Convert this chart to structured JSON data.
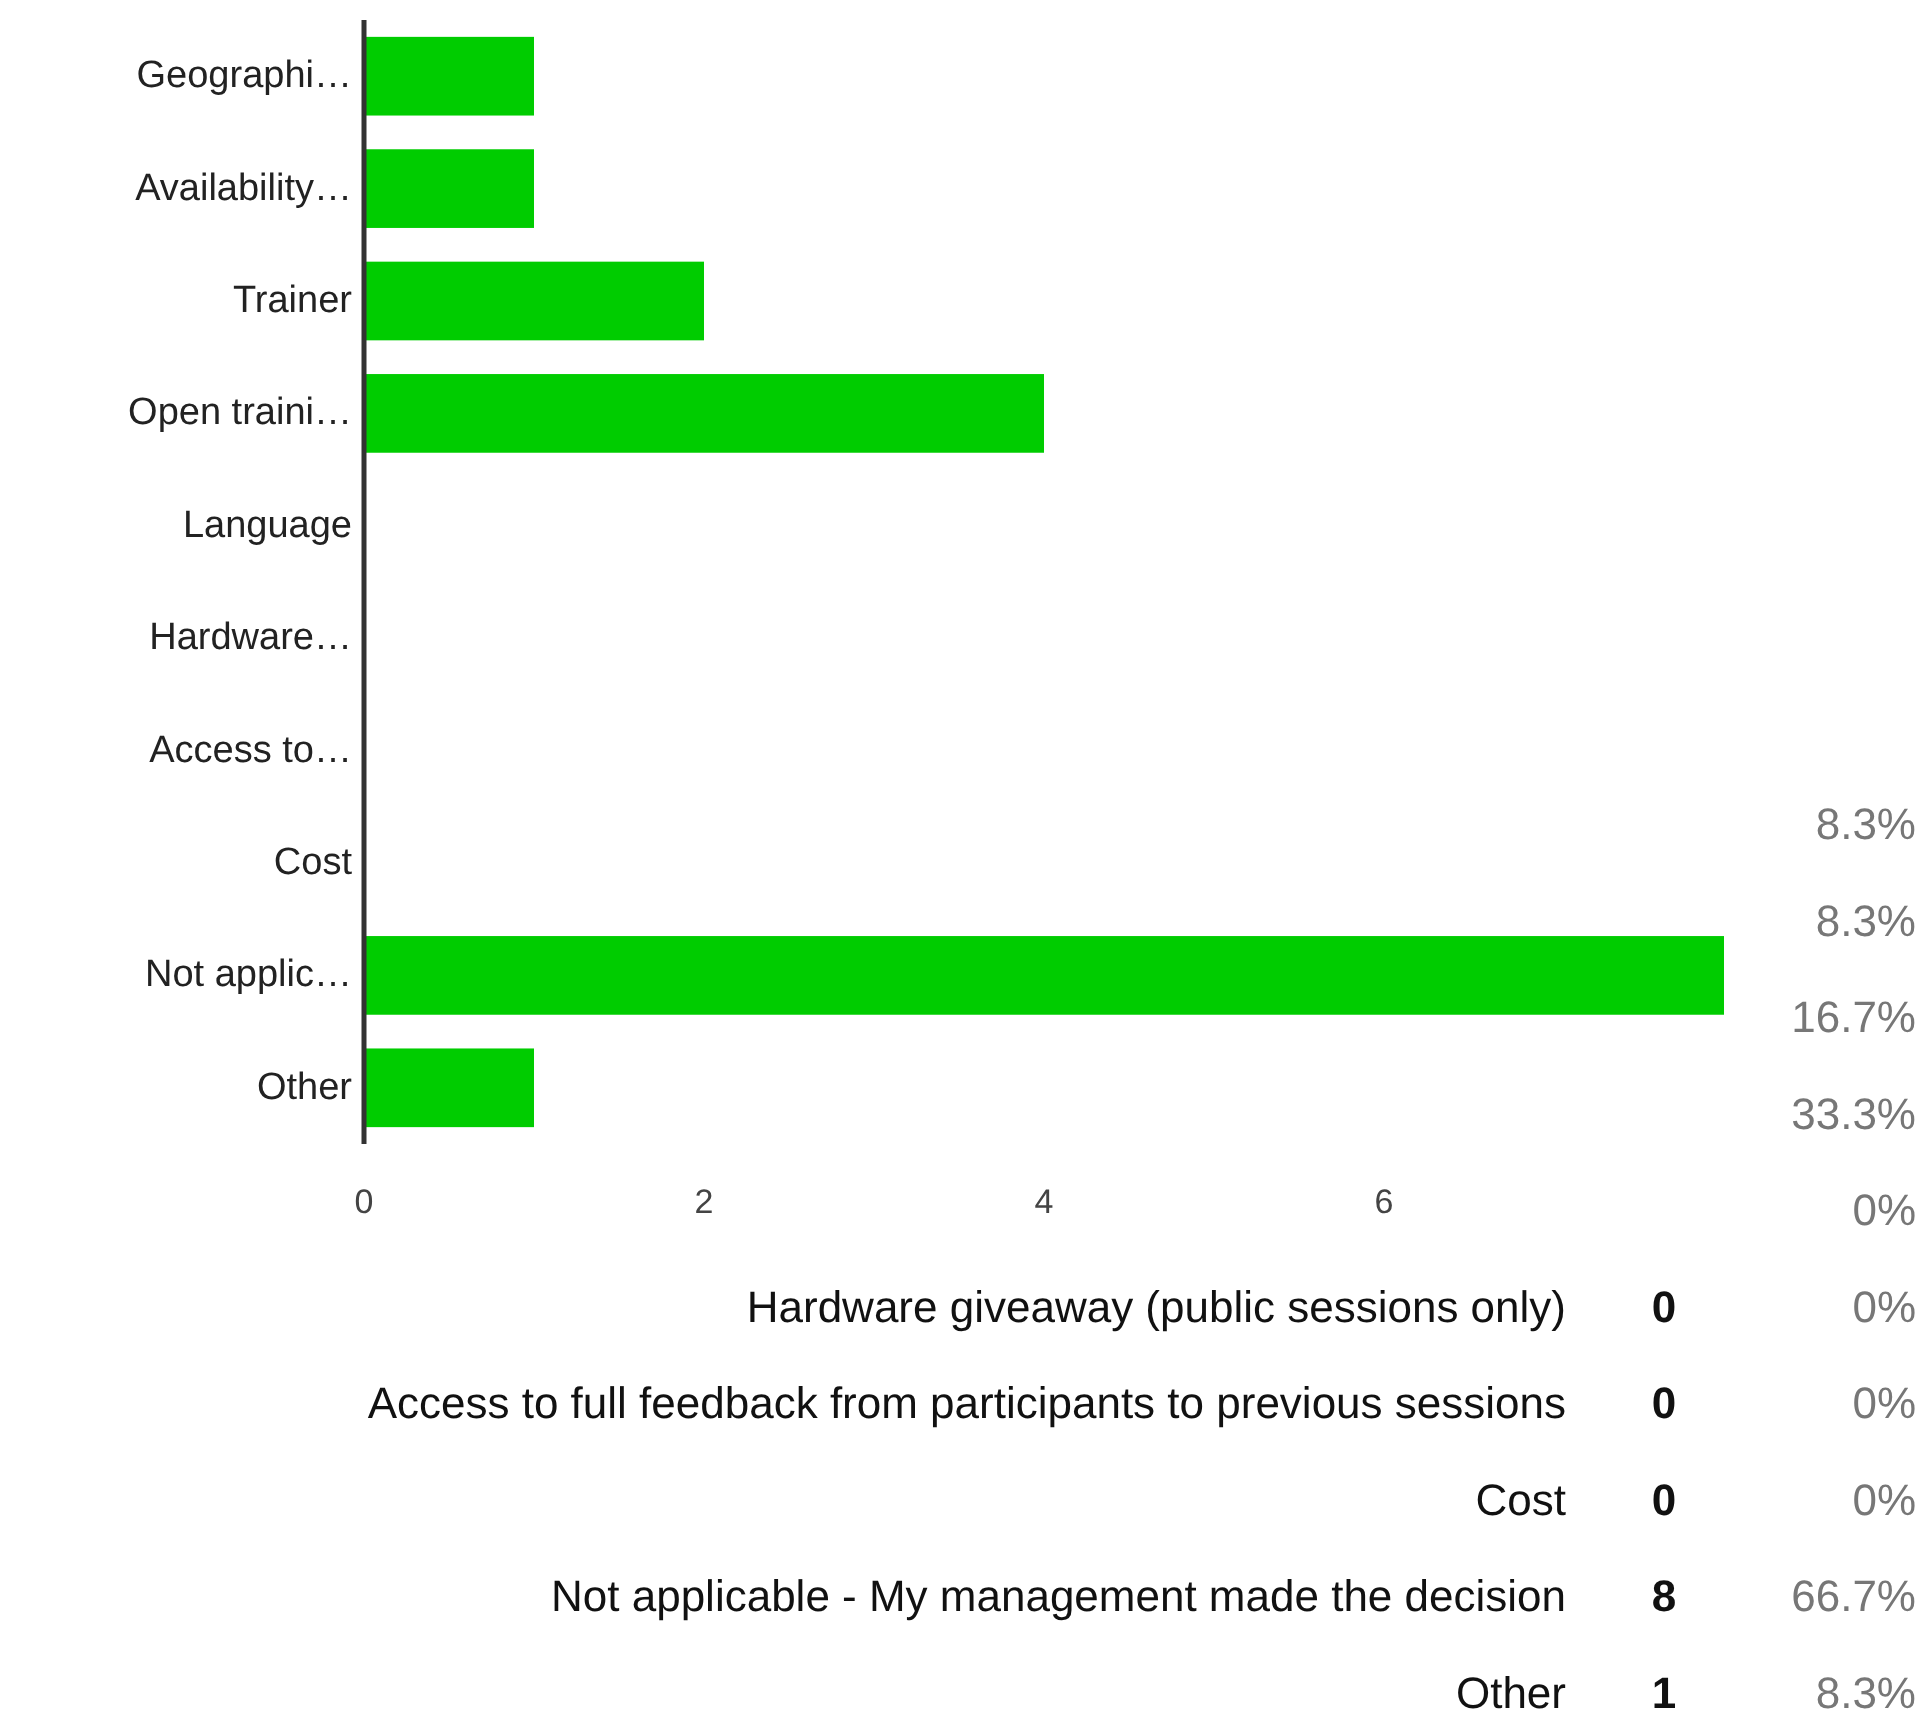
{
  "chart_data": {
    "type": "bar",
    "orientation": "horizontal",
    "categories": [
      "Geographi…",
      "Availability…",
      "Trainer",
      "Open traini…",
      "Language",
      "Hardware…",
      "Access to…",
      "Cost",
      "Not applic…",
      "Other"
    ],
    "values": [
      1,
      1,
      2,
      4,
      0,
      0,
      0,
      0,
      8,
      1
    ],
    "color": "#00cc00",
    "xlim": [
      0,
      8
    ],
    "xticks": [
      0,
      2,
      4,
      6
    ],
    "annotations": [
      "8.3%",
      "8.3%",
      "16.7%",
      "33.3%",
      "0%",
      "Hardware giveaway (public sessions only)",
      "0",
      "0%",
      "Access to full feedback from participants to previous sessions",
      "0",
      "0%",
      "Cost",
      "0",
      "0%",
      "Not applicable - My management made the decision",
      "8",
      "66.7%",
      "Other",
      "1",
      "8.3%"
    ]
  }
}
